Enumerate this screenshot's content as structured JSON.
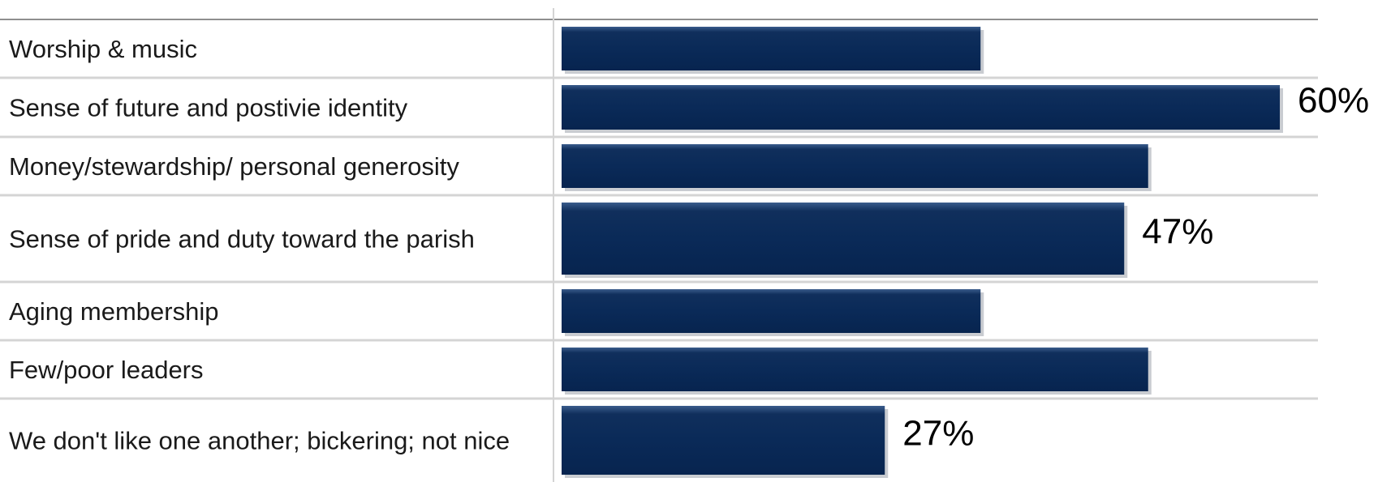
{
  "chart_data": {
    "type": "bar",
    "orientation": "horizontal",
    "title": "",
    "xlabel": "",
    "ylabel": "",
    "categories": [
      "Worship & music",
      "Sense of future and postivie identity",
      "Money/stewardship/ personal generosity",
      "Sense of pride and duty toward the parish",
      "Aging membership",
      "Few/poor leaders",
      "We don't like one another; bickering; not nice"
    ],
    "values": [
      35,
      60,
      49,
      47,
      35,
      49,
      27
    ],
    "data_labels": [
      "",
      "60%",
      "",
      "47%",
      "",
      "",
      "27%"
    ],
    "xlim": [
      0,
      60
    ],
    "grid": true,
    "legend": false,
    "colors": {
      "bar": "#0d2b55",
      "bar_highlight": "#1c3f70",
      "bar_shadow": "#c9ccd1",
      "gridline": "#d4d4d4",
      "top_rule": "#8f8f8f"
    }
  }
}
